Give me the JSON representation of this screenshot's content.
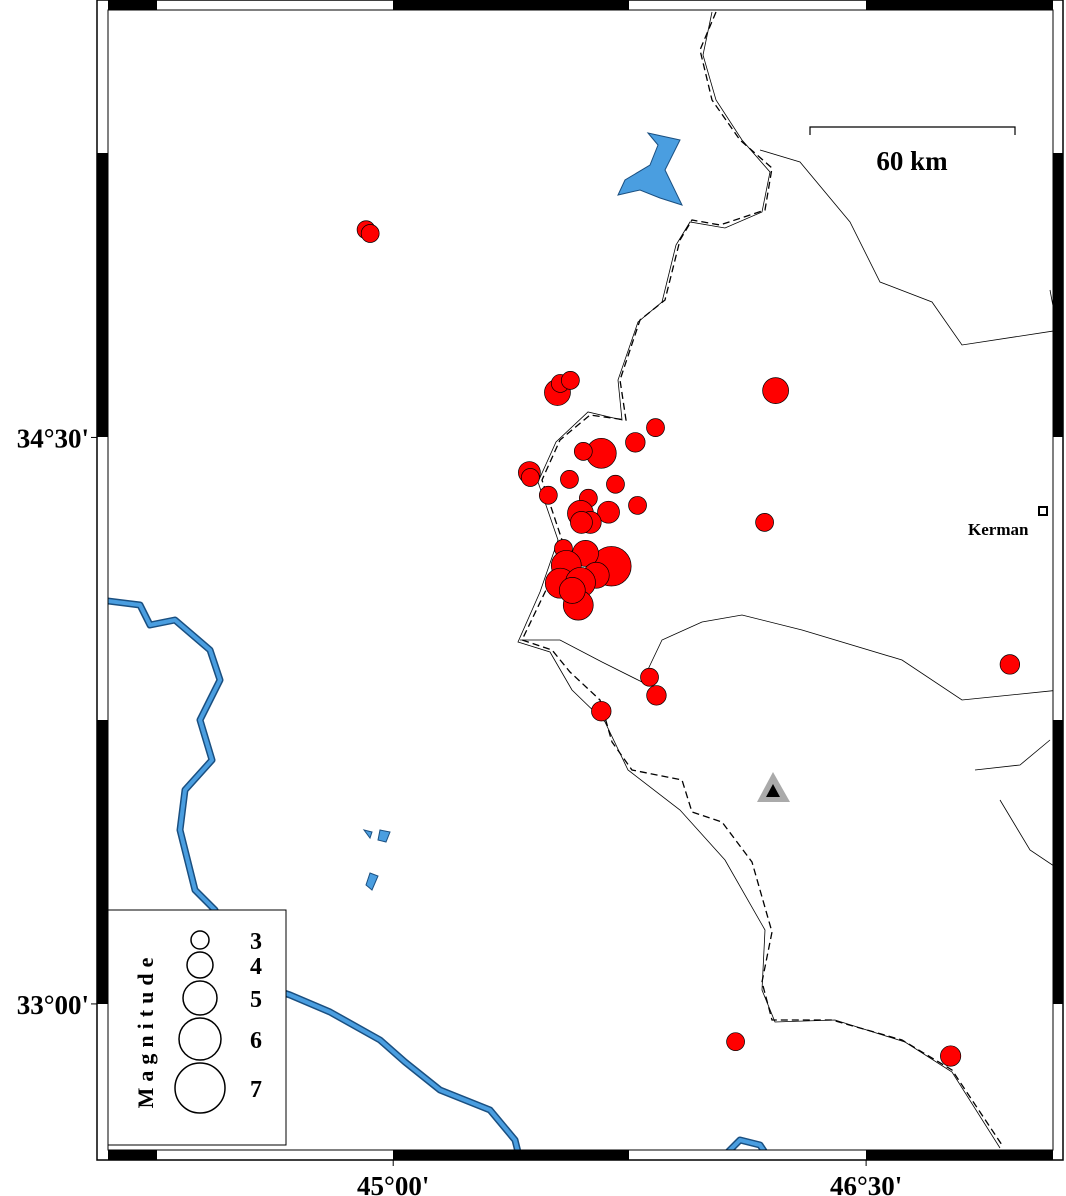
{
  "chart_data": {
    "type": "scatter",
    "x": [
      44.914,
      44.927,
      46.213,
      45.521,
      45.53,
      45.562,
      45.66,
      45.603,
      45.768,
      45.832,
      45.432,
      45.435,
      45.559,
      45.492,
      45.705,
      45.775,
      45.619,
      45.594,
      45.683,
      45.625,
      45.597,
      46.178,
      45.54,
      45.692,
      45.61,
      45.549,
      45.644,
      45.53,
      45.594,
      45.587,
      45.568,
      46.956,
      45.813,
      45.835,
      45.66,
      46.086,
      46.768
    ],
    "values": [
      35.05,
      35.04,
      34.624,
      34.619,
      34.643,
      34.651,
      34.458,
      34.463,
      34.487,
      34.526,
      34.407,
      34.394,
      34.389,
      34.347,
      34.376,
      34.32,
      34.339,
      34.299,
      34.302,
      34.275,
      34.275,
      34.275,
      34.206,
      34.159,
      34.193,
      34.161,
      34.135,
      34.114,
      34.116,
      34.056,
      34.095,
      33.899,
      33.865,
      33.817,
      33.775,
      32.9,
      32.862
    ],
    "sizes": [
      3,
      3,
      4,
      4,
      3,
      3,
      4.5,
      3,
      3.2,
      3,
      3.5,
      3,
      3,
      3,
      3,
      3,
      3,
      4,
      3.5,
      3.5,
      3.5,
      3,
      3,
      5.7,
      4,
      4.5,
      4,
      4.5,
      4.5,
      4.5,
      4,
      3.2,
      3,
      3.2,
      3.2,
      3,
      3.3
    ],
    "color": "#ff0000",
    "xlim": [
      44.07,
      47.115
    ],
    "ylim": [
      32.592,
      35.653
    ],
    "xticks": [
      {
        "value": 45,
        "label": "45°00'"
      },
      {
        "value": 46.5,
        "label": "46°30'"
      }
    ],
    "yticks": [
      {
        "value": 34.5,
        "label": "34°30'"
      },
      {
        "value": 33,
        "label": "33°00'"
      }
    ],
    "legend_title": "Magnitude",
    "size_legend": [
      3,
      4,
      5,
      6,
      7
    ],
    "scale_label": "60 km",
    "place_label": "Kerman"
  }
}
